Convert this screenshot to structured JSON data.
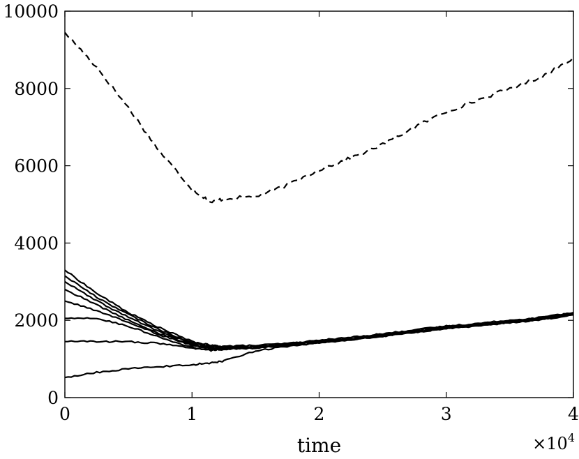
{
  "chart_data": {
    "type": "line",
    "title": "",
    "xlabel": "time",
    "ylabel": "",
    "x_multiplier_label": "×10",
    "x_multiplier_exponent": "4",
    "xlim": [
      0,
      4
    ],
    "ylim": [
      0,
      10000
    ],
    "xticks": [
      0,
      1,
      2,
      3,
      4
    ],
    "xtick_labels": [
      "0",
      "1",
      "2",
      "3",
      "4"
    ],
    "yticks": [
      0,
      2000,
      4000,
      6000,
      8000,
      10000
    ],
    "ytick_labels": [
      "0",
      "2000",
      "4000",
      "6000",
      "8000",
      "10000"
    ],
    "grid": false,
    "legend": "none",
    "line_color": "#000000",
    "x": [
      0,
      0.25,
      0.5,
      0.75,
      1.0,
      1.15,
      1.25,
      1.5,
      1.75,
      2.0,
      2.25,
      2.5,
      2.75,
      3.0,
      3.25,
      3.5,
      3.75,
      4.0
    ],
    "series": [
      {
        "style": "dashed",
        "values": [
          9450,
          8550,
          7500,
          6350,
          5400,
          5050,
          5150,
          5200,
          5500,
          5900,
          6200,
          6550,
          7000,
          7400,
          7700,
          8000,
          8300,
          8800
        ]
      },
      {
        "style": "solid",
        "values": [
          3300,
          2700,
          2200,
          1800,
          1450,
          1350,
          1330,
          1350,
          1400,
          1480,
          1560,
          1650,
          1750,
          1850,
          1920,
          2000,
          2080,
          2200
        ]
      },
      {
        "style": "solid",
        "values": [
          3150,
          2600,
          2150,
          1750,
          1420,
          1330,
          1310,
          1330,
          1390,
          1470,
          1550,
          1640,
          1740,
          1840,
          1910,
          1990,
          2070,
          2190
        ]
      },
      {
        "style": "solid",
        "values": [
          3000,
          2500,
          2080,
          1700,
          1400,
          1310,
          1300,
          1320,
          1380,
          1460,
          1540,
          1630,
          1730,
          1830,
          1900,
          1980,
          2060,
          2180
        ]
      },
      {
        "style": "solid",
        "values": [
          2800,
          2400,
          2000,
          1650,
          1380,
          1290,
          1290,
          1310,
          1370,
          1450,
          1530,
          1620,
          1720,
          1820,
          1890,
          1970,
          2050,
          2170
        ]
      },
      {
        "style": "solid",
        "values": [
          2500,
          2250,
          1950,
          1620,
          1350,
          1260,
          1280,
          1300,
          1360,
          1440,
          1520,
          1610,
          1710,
          1810,
          1880,
          1960,
          2040,
          2160
        ]
      },
      {
        "style": "solid",
        "values": [
          2050,
          2050,
          1850,
          1550,
          1300,
          1220,
          1250,
          1290,
          1350,
          1430,
          1510,
          1600,
          1700,
          1800,
          1870,
          1950,
          2030,
          2150
        ]
      },
      {
        "style": "solid",
        "values": [
          1450,
          1450,
          1450,
          1400,
          1280,
          1230,
          1250,
          1280,
          1340,
          1420,
          1500,
          1590,
          1690,
          1790,
          1860,
          1940,
          2020,
          2140
        ]
      },
      {
        "style": "solid",
        "values": [
          520,
          650,
          750,
          800,
          850,
          900,
          950,
          1200,
          1330,
          1420,
          1500,
          1590,
          1690,
          1790,
          1860,
          1940,
          2020,
          2140
        ]
      }
    ]
  }
}
